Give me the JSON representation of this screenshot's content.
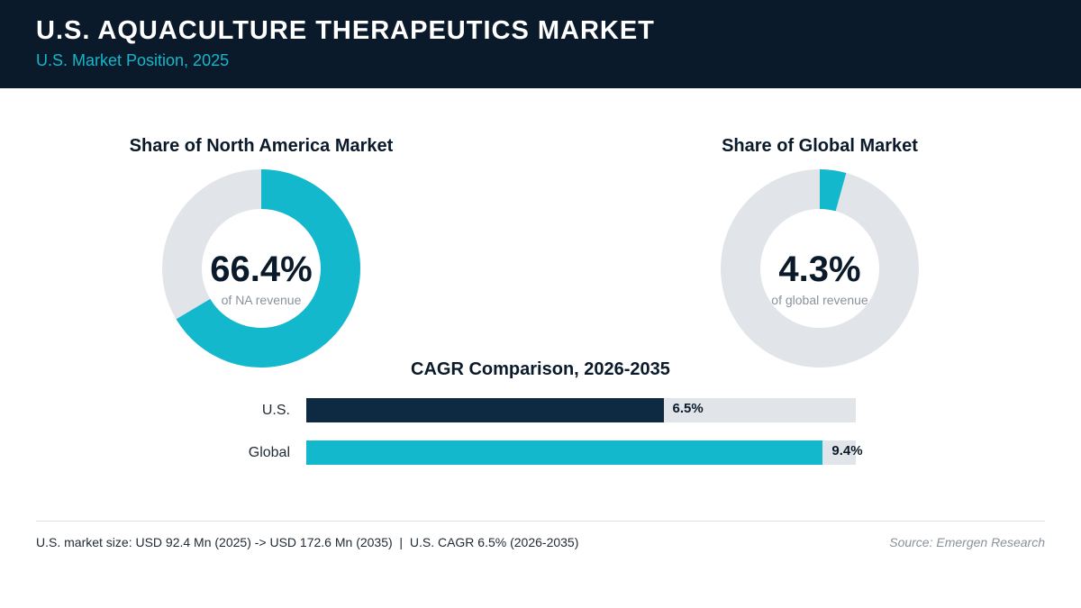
{
  "header": {
    "title": "U.S. AQUACULTURE THERAPEUTICS MARKET",
    "subtitle": "U.S. Market Position, 2025"
  },
  "colors": {
    "header_bg": "#0a1a2a",
    "accent": "#13b8cc",
    "navy": "#0e2a42",
    "track": "#e1e5e9"
  },
  "chart_data": [
    {
      "type": "pie",
      "title": "Share of North America Market",
      "values": [
        66.4,
        33.6
      ],
      "center_value": "66.4%",
      "center_caption": "of NA revenue",
      "colors": [
        "#13b8cc",
        "#e1e5e9"
      ]
    },
    {
      "type": "pie",
      "title": "Share of Global Market",
      "values": [
        4.3,
        95.7
      ],
      "center_value": "4.3%",
      "center_caption": "of global revenue",
      "colors": [
        "#13b8cc",
        "#e1e5e9"
      ]
    },
    {
      "type": "bar",
      "orientation": "horizontal",
      "title": "CAGR Comparison, 2026-2035",
      "categories": [
        "U.S.",
        "Global"
      ],
      "values": [
        6.5,
        9.4
      ],
      "value_labels": [
        "6.5%",
        "9.4%"
      ],
      "xlim": [
        0,
        10
      ],
      "colors": [
        "#0e2a42",
        "#13b8cc"
      ]
    }
  ],
  "footer": {
    "note": "U.S. market size: USD 92.4 Mn (2025) -> USD 172.6 Mn (2035)  |  U.S. CAGR 6.5% (2026-2035)",
    "source": "Source: Emergen Research"
  }
}
